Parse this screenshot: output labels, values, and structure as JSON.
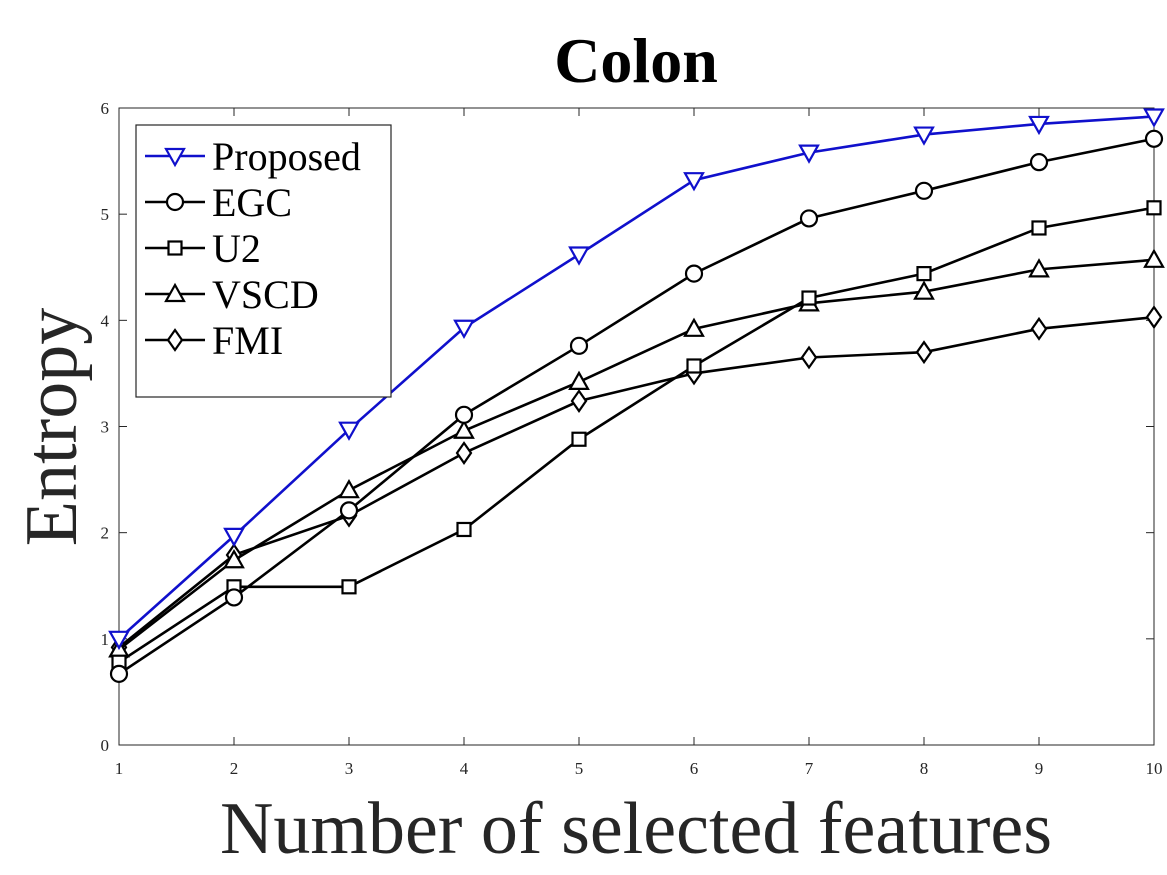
{
  "chart_data": {
    "type": "line",
    "title": "Colon",
    "xlabel": "Number of selected features",
    "ylabel": "Entropy",
    "x": [
      1,
      2,
      3,
      4,
      5,
      6,
      7,
      8,
      9,
      10
    ],
    "xlim": [
      1,
      10
    ],
    "ylim": [
      0,
      6
    ],
    "xticks": [
      "1",
      "2",
      "3",
      "4",
      "5",
      "6",
      "7",
      "8",
      "9",
      "10"
    ],
    "yticks": [
      "0",
      "1",
      "2",
      "3",
      "4",
      "5",
      "6"
    ],
    "grid": false,
    "legend_position": "top-left",
    "series": [
      {
        "name": "Proposed",
        "marker": "triangle-down",
        "color": "#1010cc",
        "values": [
          1.0,
          1.97,
          2.97,
          3.93,
          4.62,
          5.32,
          5.58,
          5.75,
          5.85,
          5.92
        ]
      },
      {
        "name": "EGC",
        "marker": "circle",
        "color": "#000000",
        "values": [
          0.67,
          1.39,
          2.21,
          3.11,
          3.76,
          4.44,
          4.96,
          5.22,
          5.49,
          5.71
        ]
      },
      {
        "name": "U2",
        "marker": "square",
        "color": "#000000",
        "values": [
          0.78,
          1.49,
          1.49,
          2.03,
          2.88,
          3.57,
          4.21,
          4.44,
          4.87,
          5.06
        ]
      },
      {
        "name": "VSCD",
        "marker": "triangle-up",
        "color": "#000000",
        "values": [
          0.9,
          1.74,
          2.4,
          2.96,
          3.42,
          3.92,
          4.16,
          4.27,
          4.48,
          4.57
        ]
      },
      {
        "name": "FMI",
        "marker": "diamond",
        "color": "#000000",
        "values": [
          0.92,
          1.79,
          2.16,
          2.75,
          3.24,
          3.5,
          3.65,
          3.7,
          3.92,
          4.03
        ]
      }
    ]
  }
}
